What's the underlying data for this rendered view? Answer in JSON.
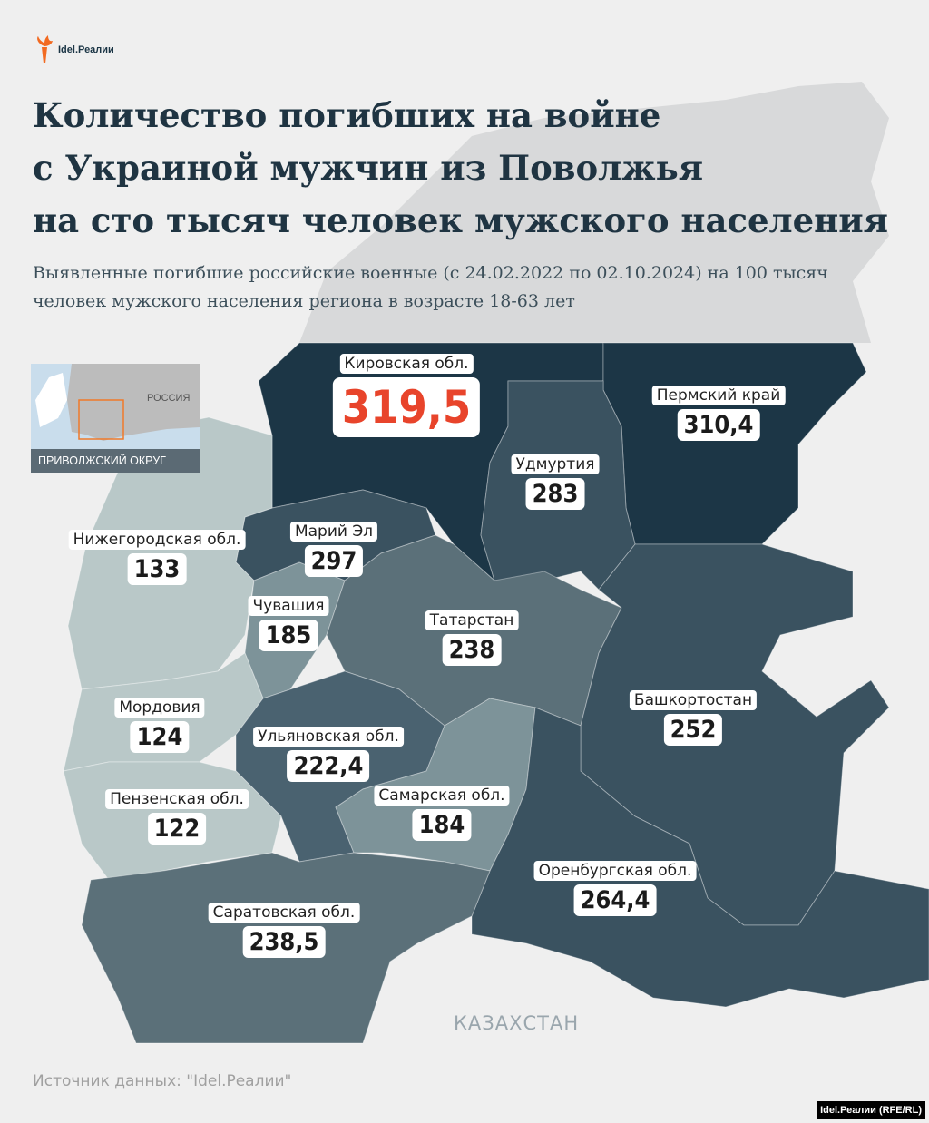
{
  "brand": {
    "logo_text": "Idel.Реалии",
    "accent": "#f26a21"
  },
  "title_lines": [
    "Количество погибших на войне",
    "с Украиной мужчин из Поволжья",
    "на сто тысяч человек мужского населения"
  ],
  "subtitle": "Выявленные погибшие российские военные (с 24.02.2022 по 02.10.2024) на 100 тысяч человек мужского населения региона в возрасте 18-63 лет",
  "inset": {
    "country_label": "РОССИЯ",
    "district_label": "ПРИВОЛЖСКИЙ ОКРУГ"
  },
  "regions": [
    {
      "name": "Кировская обл.",
      "value": "319,5",
      "color": "#1c3646"
    },
    {
      "name": "Пермский край",
      "value": "310,4",
      "color": "#1c3646"
    },
    {
      "name": "Удмуртия",
      "value": "283",
      "color": "#3a5260"
    },
    {
      "name": "Марий Эл",
      "value": "297",
      "color": "#3a5260"
    },
    {
      "name": "Нижегородская обл.",
      "value": "133",
      "color": "#b9c8c8"
    },
    {
      "name": "Чувашия",
      "value": "185",
      "color": "#7d9399"
    },
    {
      "name": "Татарстан",
      "value": "238",
      "color": "#5b7079"
    },
    {
      "name": "Башкортостан",
      "value": "252",
      "color": "#3a5260"
    },
    {
      "name": "Мордовия",
      "value": "124",
      "color": "#b9c8c8"
    },
    {
      "name": "Ульяновская обл.",
      "value": "222,4",
      "color": "#4a6270"
    },
    {
      "name": "Пензенская обл.",
      "value": "122",
      "color": "#b9c8c8"
    },
    {
      "name": "Самарская обл.",
      "value": "184",
      "color": "#7d9399"
    },
    {
      "name": "Оренбургская обл.",
      "value": "264,4",
      "color": "#3a5260"
    },
    {
      "name": "Саратовская обл.",
      "value": "238,5",
      "color": "#5b7079"
    }
  ],
  "neighbor_label": "КАЗАХСТАН",
  "source": "Источник данных: \"Idel.Реалии\"",
  "credit": "Idel.Реалии (RFE/RL)"
}
